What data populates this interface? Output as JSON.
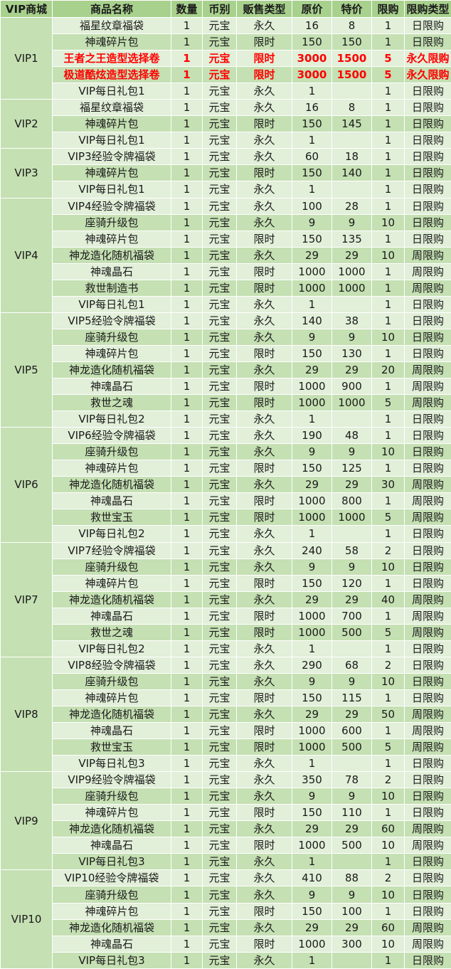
{
  "headers": [
    "VIP商城",
    "商品名称",
    "数量",
    "币别",
    "贩售类型",
    "原价",
    "特价",
    "限购",
    "限购类型"
  ],
  "groups": [
    {
      "vip": "VIP1",
      "rows": [
        {
          "name": "福星纹章福袋",
          "qty": "1",
          "currency": "元宝",
          "sale_type": "永久",
          "orig": "16",
          "special": "8",
          "limit": "1",
          "limit_type": "日限购"
        },
        {
          "name": "神魂碎片包",
          "qty": "1",
          "currency": "元宝",
          "sale_type": "限时",
          "orig": "150",
          "special": "150",
          "limit": "1",
          "limit_type": "日限购"
        },
        {
          "name": "王者之王造型选择卷",
          "qty": "1",
          "currency": "元宝",
          "sale_type": "限时",
          "orig": "3000",
          "special": "1500",
          "limit": "5",
          "limit_type": "永久限购",
          "highlight": true
        },
        {
          "name": "极道酷炫造型选择卷",
          "qty": "1",
          "currency": "元宝",
          "sale_type": "限时",
          "orig": "3000",
          "special": "1500",
          "limit": "5",
          "limit_type": "永久限购",
          "highlight": true
        },
        {
          "name": "VIP每日礼包1",
          "qty": "1",
          "currency": "元宝",
          "sale_type": "永久",
          "orig": "1",
          "special": "",
          "limit": "1",
          "limit_type": "日限购"
        }
      ]
    },
    {
      "vip": "VIP2",
      "rows": [
        {
          "name": "福星纹章福袋",
          "qty": "1",
          "currency": "元宝",
          "sale_type": "永久",
          "orig": "16",
          "special": "8",
          "limit": "1",
          "limit_type": "日限购"
        },
        {
          "name": "神魂碎片包",
          "qty": "1",
          "currency": "元宝",
          "sale_type": "限时",
          "orig": "150",
          "special": "145",
          "limit": "1",
          "limit_type": "日限购"
        },
        {
          "name": "VIP每日礼包1",
          "qty": "1",
          "currency": "元宝",
          "sale_type": "永久",
          "orig": "1",
          "special": "",
          "limit": "1",
          "limit_type": "日限购"
        }
      ]
    },
    {
      "vip": "VIP3",
      "rows": [
        {
          "name": "VIP3经验令牌福袋",
          "qty": "1",
          "currency": "元宝",
          "sale_type": "永久",
          "orig": "60",
          "special": "18",
          "limit": "1",
          "limit_type": "日限购"
        },
        {
          "name": "神魂碎片包",
          "qty": "1",
          "currency": "元宝",
          "sale_type": "限时",
          "orig": "150",
          "special": "140",
          "limit": "1",
          "limit_type": "日限购"
        },
        {
          "name": "VIP每日礼包1",
          "qty": "1",
          "currency": "元宝",
          "sale_type": "永久",
          "orig": "1",
          "special": "",
          "limit": "1",
          "limit_type": "日限购"
        }
      ]
    },
    {
      "vip": "VIP4",
      "rows": [
        {
          "name": "VIP4经验令牌福袋",
          "qty": "1",
          "currency": "元宝",
          "sale_type": "永久",
          "orig": "100",
          "special": "28",
          "limit": "1",
          "limit_type": "日限购"
        },
        {
          "name": "座骑升级包",
          "qty": "1",
          "currency": "元宝",
          "sale_type": "永久",
          "orig": "9",
          "special": "9",
          "limit": "10",
          "limit_type": "日限购"
        },
        {
          "name": "神魂碎片包",
          "qty": "1",
          "currency": "元宝",
          "sale_type": "限时",
          "orig": "150",
          "special": "135",
          "limit": "1",
          "limit_type": "日限购"
        },
        {
          "name": "神龙造化随机福袋",
          "qty": "1",
          "currency": "元宝",
          "sale_type": "永久",
          "orig": "29",
          "special": "29",
          "limit": "10",
          "limit_type": "周限购"
        },
        {
          "name": "神魂晶石",
          "qty": "1",
          "currency": "元宝",
          "sale_type": "限时",
          "orig": "1000",
          "special": "1000",
          "limit": "1",
          "limit_type": "周限购"
        },
        {
          "name": "救世制造书",
          "qty": "1",
          "currency": "元宝",
          "sale_type": "限时",
          "orig": "1000",
          "special": "1000",
          "limit": "1",
          "limit_type": "周限购"
        },
        {
          "name": "VIP每日礼包1",
          "qty": "1",
          "currency": "元宝",
          "sale_type": "永久",
          "orig": "1",
          "special": "",
          "limit": "1",
          "limit_type": "日限购"
        }
      ]
    },
    {
      "vip": "VIP5",
      "rows": [
        {
          "name": "VIP5经验令牌福袋",
          "qty": "1",
          "currency": "元宝",
          "sale_type": "永久",
          "orig": "140",
          "special": "38",
          "limit": "1",
          "limit_type": "日限购"
        },
        {
          "name": "座骑升级包",
          "qty": "1",
          "currency": "元宝",
          "sale_type": "永久",
          "orig": "9",
          "special": "9",
          "limit": "10",
          "limit_type": "日限购"
        },
        {
          "name": "神魂碎片包",
          "qty": "1",
          "currency": "元宝",
          "sale_type": "限时",
          "orig": "150",
          "special": "130",
          "limit": "1",
          "limit_type": "日限购"
        },
        {
          "name": "神龙造化随机福袋",
          "qty": "1",
          "currency": "元宝",
          "sale_type": "永久",
          "orig": "29",
          "special": "29",
          "limit": "20",
          "limit_type": "周限购"
        },
        {
          "name": "神魂晶石",
          "qty": "1",
          "currency": "元宝",
          "sale_type": "限时",
          "orig": "1000",
          "special": "900",
          "limit": "1",
          "limit_type": "周限购"
        },
        {
          "name": "救世之魂",
          "qty": "1",
          "currency": "元宝",
          "sale_type": "限时",
          "orig": "1000",
          "special": "1000",
          "limit": "5",
          "limit_type": "周限购"
        },
        {
          "name": "VIP每日礼包2",
          "qty": "1",
          "currency": "元宝",
          "sale_type": "永久",
          "orig": "1",
          "special": "",
          "limit": "1",
          "limit_type": "日限购"
        }
      ]
    },
    {
      "vip": "VIP6",
      "rows": [
        {
          "name": "VIP6经验令牌福袋",
          "qty": "1",
          "currency": "元宝",
          "sale_type": "永久",
          "orig": "190",
          "special": "48",
          "limit": "1",
          "limit_type": "日限购"
        },
        {
          "name": "座骑升级包",
          "qty": "1",
          "currency": "元宝",
          "sale_type": "永久",
          "orig": "9",
          "special": "9",
          "limit": "10",
          "limit_type": "日限购"
        },
        {
          "name": "神魂碎片包",
          "qty": "1",
          "currency": "元宝",
          "sale_type": "限时",
          "orig": "150",
          "special": "125",
          "limit": "1",
          "limit_type": "日限购"
        },
        {
          "name": "神龙造化随机福袋",
          "qty": "1",
          "currency": "元宝",
          "sale_type": "永久",
          "orig": "29",
          "special": "29",
          "limit": "30",
          "limit_type": "周限购"
        },
        {
          "name": "神魂晶石",
          "qty": "1",
          "currency": "元宝",
          "sale_type": "限时",
          "orig": "1000",
          "special": "800",
          "limit": "1",
          "limit_type": "周限购"
        },
        {
          "name": "救世宝玉",
          "qty": "1",
          "currency": "元宝",
          "sale_type": "限时",
          "orig": "1000",
          "special": "1000",
          "limit": "5",
          "limit_type": "周限购"
        },
        {
          "name": "VIP每日礼包2",
          "qty": "1",
          "currency": "元宝",
          "sale_type": "永久",
          "orig": "1",
          "special": "",
          "limit": "1",
          "limit_type": "日限购"
        }
      ]
    },
    {
      "vip": "VIP7",
      "rows": [
        {
          "name": "VIP7经验令牌福袋",
          "qty": "1",
          "currency": "元宝",
          "sale_type": "永久",
          "orig": "240",
          "special": "58",
          "limit": "2",
          "limit_type": "日限购"
        },
        {
          "name": "座骑升级包",
          "qty": "1",
          "currency": "元宝",
          "sale_type": "永久",
          "orig": "9",
          "special": "9",
          "limit": "10",
          "limit_type": "日限购"
        },
        {
          "name": "神魂碎片包",
          "qty": "1",
          "currency": "元宝",
          "sale_type": "限时",
          "orig": "150",
          "special": "120",
          "limit": "1",
          "limit_type": "日限购"
        },
        {
          "name": "神龙造化随机福袋",
          "qty": "1",
          "currency": "元宝",
          "sale_type": "永久",
          "orig": "29",
          "special": "29",
          "limit": "40",
          "limit_type": "周限购"
        },
        {
          "name": "神魂晶石",
          "qty": "1",
          "currency": "元宝",
          "sale_type": "限时",
          "orig": "1000",
          "special": "700",
          "limit": "1",
          "limit_type": "周限购"
        },
        {
          "name": "救世之魂",
          "qty": "1",
          "currency": "元宝",
          "sale_type": "限时",
          "orig": "1000",
          "special": "500",
          "limit": "5",
          "limit_type": "周限购"
        },
        {
          "name": "VIP每日礼包2",
          "qty": "1",
          "currency": "元宝",
          "sale_type": "永久",
          "orig": "1",
          "special": "",
          "limit": "1",
          "limit_type": "日限购"
        }
      ]
    },
    {
      "vip": "VIP8",
      "rows": [
        {
          "name": "VIP8经验令牌福袋",
          "qty": "1",
          "currency": "元宝",
          "sale_type": "永久",
          "orig": "290",
          "special": "68",
          "limit": "2",
          "limit_type": "日限购"
        },
        {
          "name": "座骑升级包",
          "qty": "1",
          "currency": "元宝",
          "sale_type": "永久",
          "orig": "9",
          "special": "9",
          "limit": "10",
          "limit_type": "日限购"
        },
        {
          "name": "神魂碎片包",
          "qty": "1",
          "currency": "元宝",
          "sale_type": "限时",
          "orig": "150",
          "special": "115",
          "limit": "1",
          "limit_type": "日限购"
        },
        {
          "name": "神龙造化随机福袋",
          "qty": "1",
          "currency": "元宝",
          "sale_type": "永久",
          "orig": "29",
          "special": "29",
          "limit": "50",
          "limit_type": "周限购"
        },
        {
          "name": "神魂晶石",
          "qty": "1",
          "currency": "元宝",
          "sale_type": "限时",
          "orig": "1000",
          "special": "600",
          "limit": "1",
          "limit_type": "周限购"
        },
        {
          "name": "救世宝玉",
          "qty": "1",
          "currency": "元宝",
          "sale_type": "限时",
          "orig": "1000",
          "special": "500",
          "limit": "5",
          "limit_type": "周限购"
        },
        {
          "name": "VIP每日礼包3",
          "qty": "1",
          "currency": "元宝",
          "sale_type": "永久",
          "orig": "1",
          "special": "",
          "limit": "1",
          "limit_type": "日限购"
        }
      ]
    },
    {
      "vip": "VIP9",
      "rows": [
        {
          "name": "VIP9经验令牌福袋",
          "qty": "1",
          "currency": "元宝",
          "sale_type": "永久",
          "orig": "350",
          "special": "78",
          "limit": "2",
          "limit_type": "日限购"
        },
        {
          "name": "座骑升级包",
          "qty": "1",
          "currency": "元宝",
          "sale_type": "永久",
          "orig": "9",
          "special": "9",
          "limit": "10",
          "limit_type": "日限购"
        },
        {
          "name": "神魂碎片包",
          "qty": "1",
          "currency": "元宝",
          "sale_type": "限时",
          "orig": "150",
          "special": "110",
          "limit": "1",
          "limit_type": "日限购"
        },
        {
          "name": "神龙造化随机福袋",
          "qty": "1",
          "currency": "元宝",
          "sale_type": "永久",
          "orig": "29",
          "special": "29",
          "limit": "60",
          "limit_type": "周限购"
        },
        {
          "name": "神魂晶石",
          "qty": "1",
          "currency": "元宝",
          "sale_type": "限时",
          "orig": "1000",
          "special": "500",
          "limit": "10",
          "limit_type": "周限购"
        },
        {
          "name": "VIP每日礼包3",
          "qty": "1",
          "currency": "元宝",
          "sale_type": "永久",
          "orig": "1",
          "special": "",
          "limit": "1",
          "limit_type": "日限购"
        }
      ]
    },
    {
      "vip": "VIP10",
      "rows": [
        {
          "name": "VIP10经验令牌福袋",
          "qty": "1",
          "currency": "元宝",
          "sale_type": "永久",
          "orig": "410",
          "special": "88",
          "limit": "2",
          "limit_type": "日限购"
        },
        {
          "name": "座骑升级包",
          "qty": "1",
          "currency": "元宝",
          "sale_type": "永久",
          "orig": "9",
          "special": "9",
          "limit": "10",
          "limit_type": "日限购"
        },
        {
          "name": "神魂碎片包",
          "qty": "1",
          "currency": "元宝",
          "sale_type": "限时",
          "orig": "150",
          "special": "100",
          "limit": "1",
          "limit_type": "日限购"
        },
        {
          "name": "神龙造化随机福袋",
          "qty": "1",
          "currency": "元宝",
          "sale_type": "永久",
          "orig": "29",
          "special": "29",
          "limit": "60",
          "limit_type": "周限购"
        },
        {
          "name": "神魂晶石",
          "qty": "1",
          "currency": "元宝",
          "sale_type": "限时",
          "orig": "1000",
          "special": "300",
          "limit": "10",
          "limit_type": "周限购"
        },
        {
          "name": "VIP每日礼包3",
          "qty": "1",
          "currency": "元宝",
          "sale_type": "永久",
          "orig": "1",
          "special": "",
          "limit": "1",
          "limit_type": "日限购"
        }
      ]
    }
  ],
  "colors": {
    "header_bg": "#a8d18d",
    "row_light": "#e2efd9",
    "row_dark": "#c5e0b3",
    "highlight_text": "#ff0000"
  }
}
